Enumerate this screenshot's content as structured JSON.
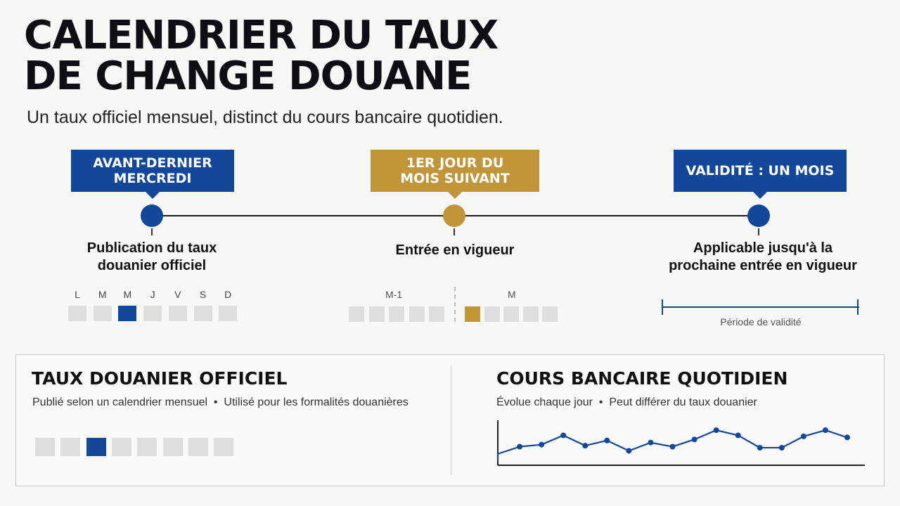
{
  "header": {
    "title": "CALENDRIER DU TAUX\nDE CHANGE DOUANE",
    "subtitle": "Un taux officiel mensuel, distinct du cours bancaire quotidien."
  },
  "timeline": {
    "steps": [
      {
        "tag": "AVANT-DERNIER MERCREDI",
        "label": "Publication du taux douanier officiel",
        "color": "#12479a"
      },
      {
        "tag": "1ER JOUR DU MOIS SUIVANT",
        "label": "Entrée en vigueur",
        "color": "#c1953a"
      },
      {
        "tag": "VALIDITÉ : UN MOIS",
        "label": "Applicable jusqu'à la prochaine entrée en vigueur",
        "color": "#12479a"
      }
    ],
    "week_days": [
      "L",
      "M",
      "M",
      "J",
      "V",
      "S",
      "D"
    ],
    "highlighted_day_index": 2,
    "month_before_label": "M-1",
    "month_label": "M",
    "validity_label": "Période de validité"
  },
  "panels": {
    "official": {
      "title": "TAUX DOUANIER OFFICIEL",
      "desc": "Publié selon un calendrier mensuel  •  Utilisé pour les formalités douanières",
      "highlighted_index": 2,
      "count": 8
    },
    "bank": {
      "title": "COURS BANCAIRE QUOTIDIEN",
      "desc": "Évolue chaque jour  •  Peut différer du taux douanier"
    }
  },
  "colors": {
    "blue": "#12479a",
    "gold": "#c1953a",
    "grey": "#dedede"
  },
  "chart_data": {
    "type": "line",
    "title": "",
    "xlabel": "",
    "ylabel": "",
    "x": [
      1,
      2,
      3,
      4,
      5,
      6,
      7,
      8,
      9,
      10,
      11,
      12,
      13,
      14,
      15,
      16,
      17
    ],
    "values": [
      3.6,
      4.3,
      4.5,
      5.4,
      4.4,
      4.9,
      3.9,
      4.7,
      4.3,
      5.0,
      5.9,
      5.4,
      4.2,
      4.2,
      5.3,
      5.9,
      5.2
    ],
    "ylim": [
      2.5,
      7.0
    ],
    "grid": false
  }
}
